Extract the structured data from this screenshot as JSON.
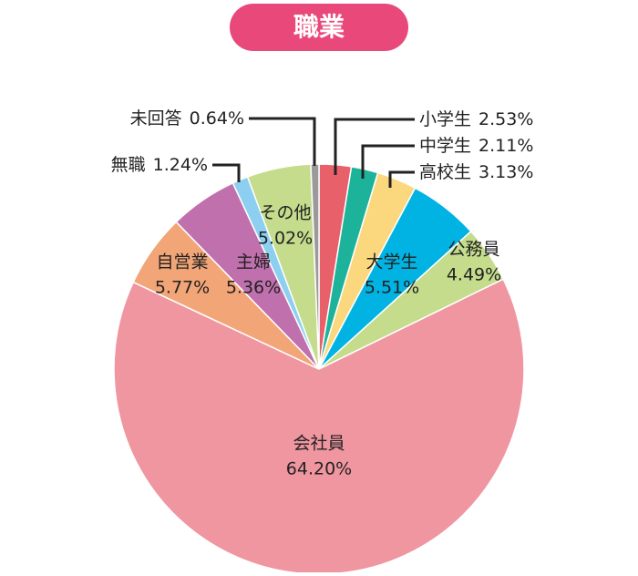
{
  "chart_data": {
    "type": "pie",
    "title": "職業",
    "categories": [
      "小学生",
      "中学生",
      "高校生",
      "大学生",
      "公務員",
      "会社員",
      "自営業",
      "主婦",
      "無職",
      "その他",
      "未回答"
    ],
    "values": [
      2.53,
      2.11,
      3.13,
      5.51,
      4.49,
      64.2,
      5.77,
      5.36,
      1.24,
      5.02,
      0.64
    ],
    "value_labels": [
      "2.53%",
      "2.11%",
      "3.13%",
      "5.51%",
      "4.49%",
      "64.20%",
      "5.77%",
      "5.36%",
      "1.24%",
      "5.02%",
      "0.64%"
    ],
    "colors": [
      "#e8606a",
      "#1db39a",
      "#fbd77e",
      "#00b3e3",
      "#c4dc8c",
      "#ef96a0",
      "#f2a577",
      "#c070ad",
      "#8ccff0",
      "#c4dc8c",
      "#9a9a9a"
    ]
  }
}
